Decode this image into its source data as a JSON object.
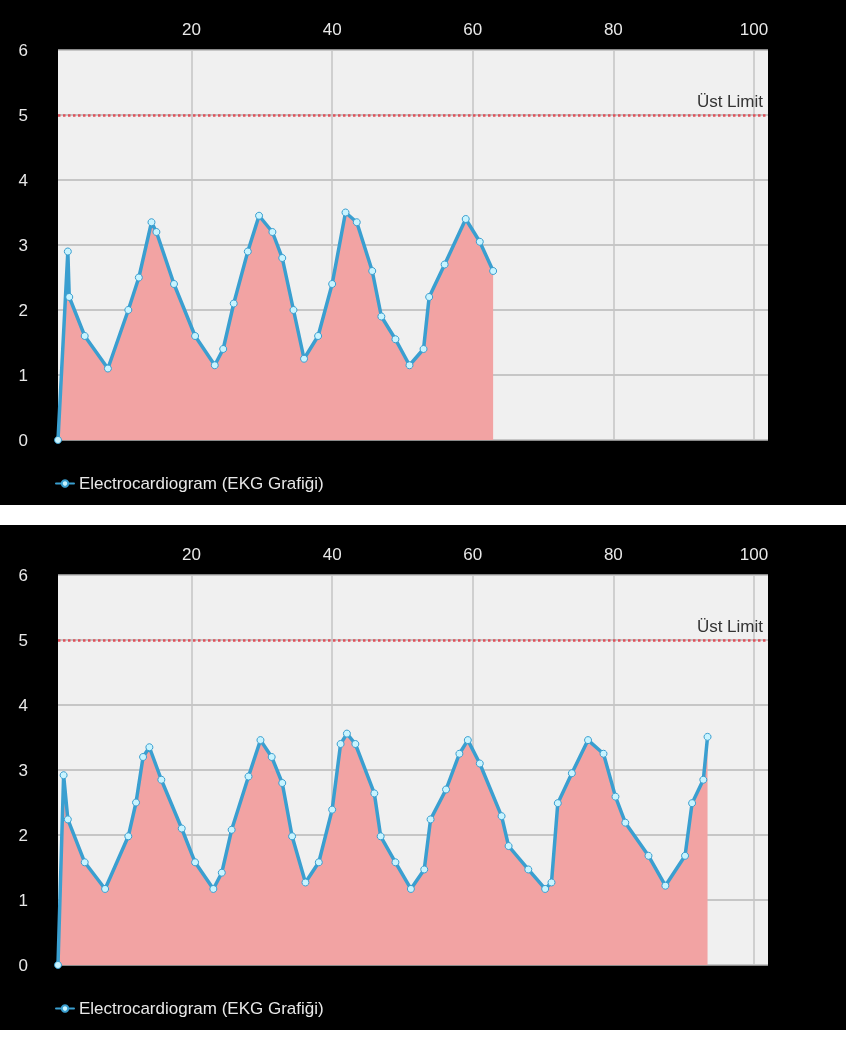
{
  "chart_data": [
    {
      "type": "area",
      "xlim": [
        1,
        102
      ],
      "xticks": [
        20,
        40,
        60,
        80,
        100
      ],
      "ylim": [
        0,
        6
      ],
      "yticks": [
        0,
        1,
        2,
        3,
        4,
        5,
        6
      ],
      "grid": true,
      "legend": "bottom left",
      "marker": "circle",
      "ref_lines": [
        {
          "axis": "y",
          "value": 5,
          "label": "Üst Limit",
          "color": "#e0505a",
          "line_style": "dotted"
        }
      ],
      "series": [
        {
          "name": "Electrocardiogram (EKG Grafiği)",
          "color": "#3a9fd0",
          "x": [
            1,
            2.4,
            2.6,
            4.8,
            8.1,
            11,
            12.5,
            14.3,
            15,
            17.5,
            20.5,
            23.3,
            24.5,
            26,
            28,
            29.6,
            31.5,
            32.9,
            34.5,
            36,
            38,
            40,
            41.9,
            43.5,
            45.7,
            47,
            49,
            51,
            53,
            53.8,
            56,
            59,
            61,
            62.9
          ],
          "values": [
            0,
            2.9,
            2.2,
            1.6,
            1.1,
            2.0,
            2.5,
            3.35,
            3.2,
            2.4,
            1.6,
            1.15,
            1.4,
            2.1,
            2.9,
            3.45,
            3.2,
            2.8,
            2.0,
            1.25,
            1.6,
            2.4,
            3.5,
            3.35,
            2.6,
            1.9,
            1.55,
            1.15,
            1.4,
            2.2,
            2.7,
            3.4,
            3.05,
            2.6
          ]
        }
      ]
    },
    {
      "type": "area",
      "xlim": [
        1,
        102
      ],
      "xticks": [
        20,
        40,
        60,
        80,
        100
      ],
      "ylim": [
        0,
        6
      ],
      "yticks": [
        0,
        1,
        2,
        3,
        4,
        5,
        6
      ],
      "grid": true,
      "legend": "bottom left",
      "marker": "circle",
      "ref_lines": [
        {
          "axis": "y",
          "value": 5,
          "label": "Üst Limit",
          "color": "#e0505a",
          "line_style": "dotted"
        }
      ],
      "series": [
        {
          "name": "Electrocardiogram (EKG Grafiği)",
          "color": "#3a9fd0",
          "x": [
            1,
            1.8,
            2.4,
            4.8,
            7.7,
            11,
            12.1,
            13.1,
            14,
            15.7,
            18.6,
            20.5,
            23.1,
            24.3,
            25.7,
            28.1,
            29.8,
            31.4,
            32.9,
            34.3,
            36.2,
            38.1,
            40,
            41.2,
            42.1,
            43.3,
            46,
            46.9,
            49,
            51.2,
            53.1,
            54,
            56.2,
            58.1,
            59.3,
            61,
            64.1,
            65.1,
            67.9,
            70.3,
            71.2,
            72.1,
            74.1,
            76.4,
            78.6,
            80.3,
            81.7,
            85,
            87.4,
            90.2,
            91.2,
            92.8,
            93.4
          ],
          "values": [
            0,
            2.92,
            2.24,
            1.58,
            1.17,
            1.98,
            2.5,
            3.2,
            3.35,
            2.85,
            2.1,
            1.58,
            1.17,
            1.42,
            2.08,
            2.9,
            3.46,
            3.2,
            2.8,
            1.98,
            1.27,
            1.58,
            2.39,
            3.4,
            3.56,
            3.4,
            2.64,
            1.98,
            1.58,
            1.17,
            1.47,
            2.24,
            2.7,
            3.25,
            3.46,
            3.1,
            2.29,
            1.83,
            1.47,
            1.17,
            1.27,
            2.49,
            2.95,
            3.46,
            3.25,
            2.59,
            2.19,
            1.68,
            1.22,
            1.68,
            2.49,
            2.85,
            3.51
          ]
        }
      ]
    }
  ]
}
